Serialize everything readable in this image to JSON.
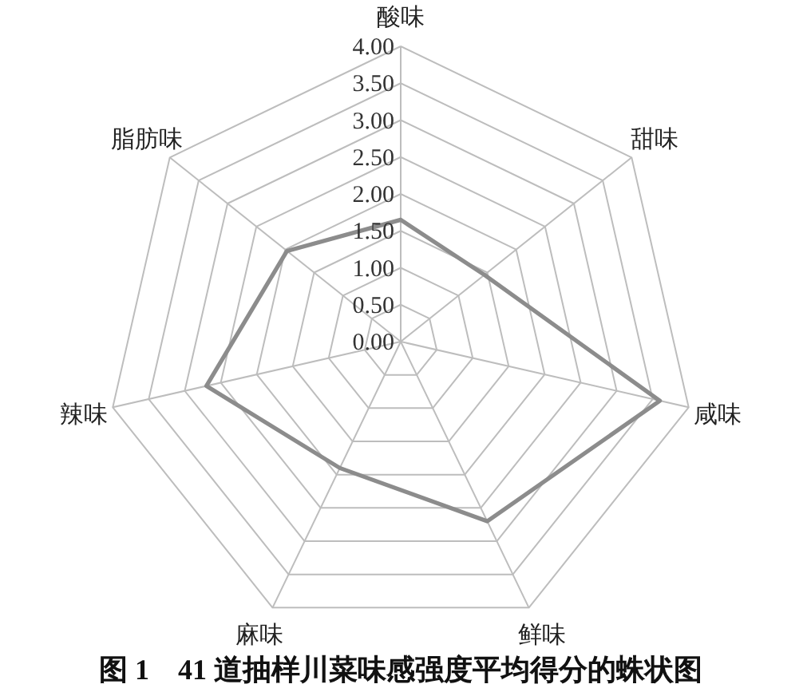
{
  "chart_data": {
    "type": "radar",
    "title": "图 1　41 道抽样川菜味感强度平均得分的蛛状图",
    "categories": [
      "酸味",
      "甜味",
      "咸味",
      "鲜味",
      "麻味",
      "辣味",
      "脂肪味"
    ],
    "series": [
      {
        "color": "#8c8c8c",
        "values": [
          1.65,
          1.45,
          3.6,
          2.7,
          1.9,
          2.7,
          1.97
        ]
      }
    ],
    "ylim": [
      0,
      4
    ],
    "yticks": [
      {
        "value": 0,
        "label": "0.00"
      },
      {
        "value": 0.5,
        "label": "0.50"
      },
      {
        "value": 1,
        "label": "1.00"
      },
      {
        "value": 1.5,
        "label": "1.50"
      },
      {
        "value": 2,
        "label": "2.00"
      },
      {
        "value": 2.5,
        "label": "2.50"
      },
      {
        "value": 3,
        "label": "3.00"
      },
      {
        "value": 3.5,
        "label": "3.50"
      },
      {
        "value": 4,
        "label": "4.00"
      }
    ],
    "grid": true
  }
}
